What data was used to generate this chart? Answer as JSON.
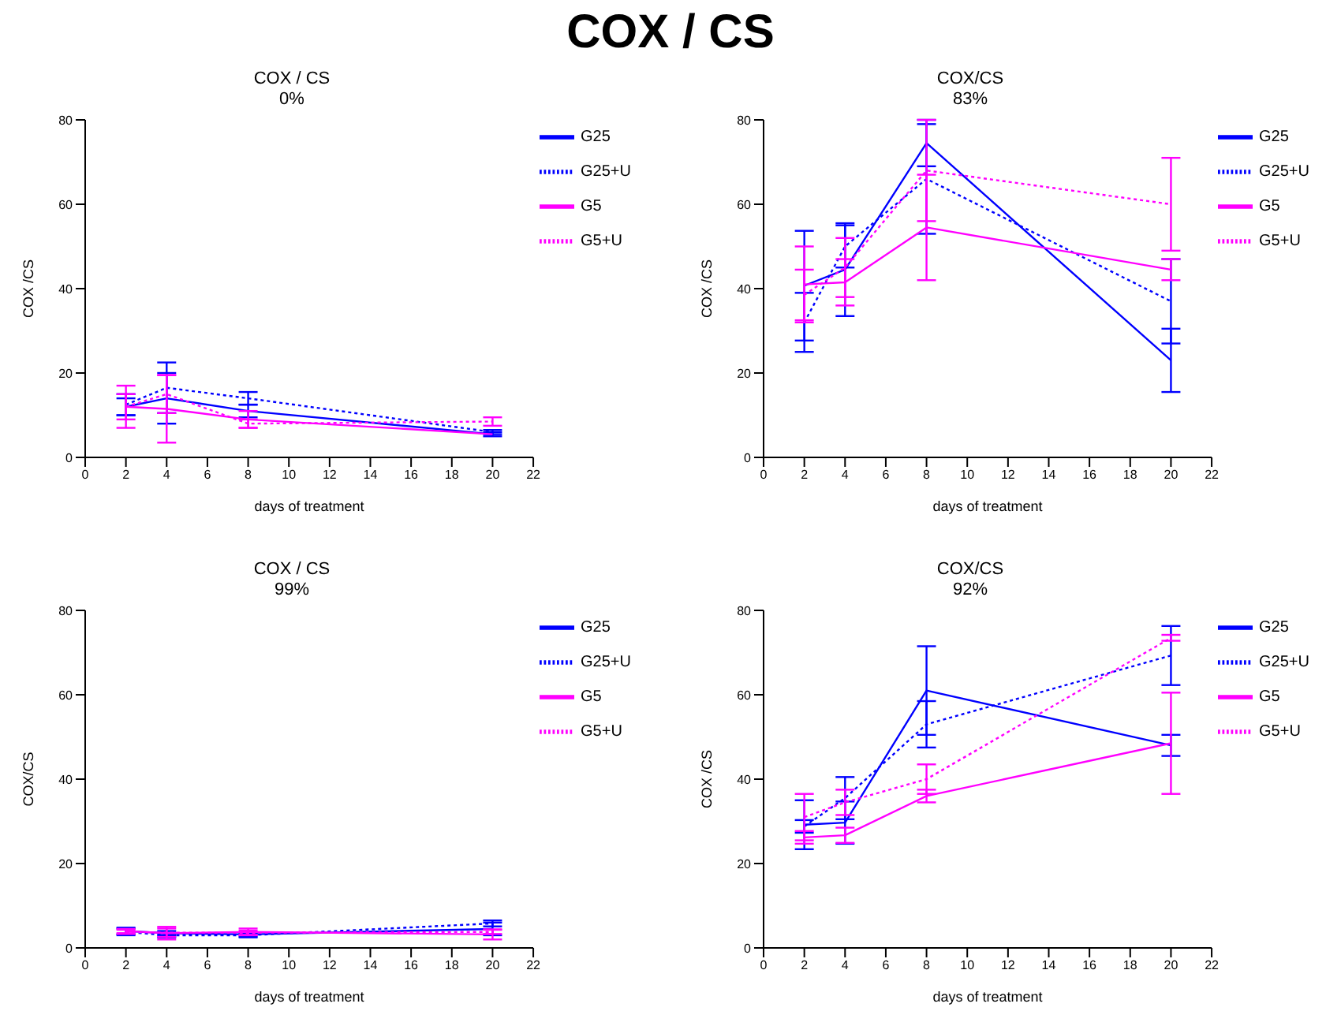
{
  "chart_data": [
    {
      "type": "line",
      "annotations": [
        "COX / CS"
      ],
      "title": "COX / CS",
      "subtitle": "0%",
      "xlabel": "days of treatment",
      "ylabel": "COX /CS",
      "x": [
        2,
        4,
        8,
        20
      ],
      "xlim": [
        0,
        22
      ],
      "xticks": [
        0,
        2,
        4,
        6,
        8,
        10,
        12,
        14,
        16,
        18,
        20,
        22
      ],
      "ylim": [
        0,
        80
      ],
      "yticks": [
        0,
        20,
        40,
        60,
        80
      ],
      "grid": false,
      "legend": "top right",
      "marker": "none",
      "series": [
        {
          "name": "G25",
          "color": "#0000ff",
          "line_style": "solid",
          "values": [
            12,
            14,
            11,
            5.5
          ],
          "errors": [
            2,
            6,
            1.5,
            0.5
          ]
        },
        {
          "name": "G25+U",
          "color": "#0000ff",
          "line_style": "dotted",
          "values": [
            12.5,
            16.5,
            14,
            6
          ],
          "errors": [
            2.5,
            6,
            1.5,
            0.5
          ]
        },
        {
          "name": "G5",
          "color": "#ff00ff",
          "line_style": "solid",
          "values": [
            12,
            11.5,
            9,
            5.5
          ],
          "errors": [
            5,
            8,
            2,
            null
          ]
        },
        {
          "name": "G5+U",
          "color": "#ff00ff",
          "line_style": "dotted",
          "values": [
            12,
            15,
            8,
            8.5
          ],
          "errors": [
            3,
            4.5,
            1,
            1
          ]
        }
      ]
    },
    {
      "type": "line",
      "title": "COX/CS",
      "subtitle": "83%",
      "xlabel": "days of treatment",
      "ylabel": "COX /CS",
      "x": [
        2,
        4,
        8,
        20
      ],
      "xlim": [
        0,
        22
      ],
      "xticks": [
        0,
        2,
        4,
        6,
        8,
        10,
        12,
        14,
        16,
        18,
        20,
        22
      ],
      "ylim": [
        0,
        80
      ],
      "yticks": [
        0,
        20,
        40,
        60,
        80
      ],
      "grid": false,
      "legend": "top right",
      "marker": "none",
      "series": [
        {
          "name": "G25",
          "color": "#0000ff",
          "line_style": "solid",
          "values": [
            40.7,
            44.5,
            74.5,
            23
          ],
          "errors": [
            13,
            11,
            5.5,
            7.5
          ]
        },
        {
          "name": "G25+U",
          "color": "#0000ff",
          "line_style": "dotted",
          "values": [
            32,
            50,
            66,
            37
          ],
          "errors": [
            7,
            5,
            13,
            10
          ]
        },
        {
          "name": "G5",
          "color": "#ff00ff",
          "line_style": "solid",
          "values": [
            41,
            41.5,
            54.5,
            44.5
          ],
          "errors": [
            9,
            5.5,
            12.5,
            2.5
          ]
        },
        {
          "name": "G5+U",
          "color": "#ff00ff",
          "line_style": "dotted",
          "values": [
            38.5,
            45,
            68,
            60
          ],
          "errors": [
            6,
            7,
            12,
            11
          ]
        }
      ]
    },
    {
      "type": "line",
      "title": "COX / CS",
      "subtitle": "99%",
      "xlabel": "days of treatment",
      "ylabel": "COX/CS",
      "x": [
        2,
        4,
        8,
        20
      ],
      "xlim": [
        0,
        22
      ],
      "xticks": [
        0,
        2,
        4,
        6,
        8,
        10,
        12,
        14,
        16,
        18,
        20,
        22
      ],
      "ylim": [
        0,
        80
      ],
      "yticks": [
        0,
        20,
        40,
        60,
        80
      ],
      "grid": false,
      "legend": "top right",
      "marker": "none",
      "series": [
        {
          "name": "G25",
          "color": "#0000ff",
          "line_style": "solid",
          "values": [
            4,
            3.5,
            3.2,
            4.5
          ],
          "errors": [
            0.8,
            0.5,
            0.5,
            1.5
          ]
        },
        {
          "name": "G25+U",
          "color": "#0000ff",
          "line_style": "dotted",
          "values": [
            3.8,
            3,
            3,
            5.8
          ],
          "errors": [
            0.8,
            0.5,
            0.5,
            0.7
          ]
        },
        {
          "name": "G5",
          "color": "#ff00ff",
          "line_style": "solid",
          "values": [
            4,
            3.5,
            3.8,
            3.2
          ],
          "errors": [
            0.5,
            1.5,
            0.8,
            1.2
          ]
        },
        {
          "name": "G5+U",
          "color": "#ff00ff",
          "line_style": "dotted",
          "values": [
            3.8,
            3.6,
            3.6,
            3.8
          ],
          "errors": [
            0.5,
            1,
            0.5,
            0.5
          ]
        }
      ]
    },
    {
      "type": "line",
      "title": "COX/CS",
      "subtitle": "92%",
      "xlabel": "days of treatment",
      "ylabel": "COX /CS",
      "x": [
        2,
        4,
        8,
        20
      ],
      "xlim": [
        0,
        22
      ],
      "xticks": [
        0,
        2,
        4,
        6,
        8,
        10,
        12,
        14,
        16,
        18,
        20,
        22
      ],
      "ylim": [
        0,
        80
      ],
      "yticks": [
        0,
        20,
        40,
        60,
        80
      ],
      "grid": false,
      "legend": "top right",
      "marker": "none",
      "series": [
        {
          "name": "G25",
          "color": "#0000ff",
          "line_style": "solid",
          "values": [
            29.2,
            29.7,
            61,
            48
          ],
          "errors": [
            5.8,
            5,
            10.5,
            2.5
          ]
        },
        {
          "name": "G25+U",
          "color": "#0000ff",
          "line_style": "dotted",
          "values": [
            28.8,
            35.5,
            53,
            69.3
          ],
          "errors": [
            1.5,
            5,
            5.5,
            7
          ]
        },
        {
          "name": "G5",
          "color": "#ff00ff",
          "line_style": "solid",
          "values": [
            26.2,
            26.7,
            36,
            48.5
          ],
          "errors": [
            1.5,
            1.8,
            1.5,
            12
          ]
        },
        {
          "name": "G5+U",
          "color": "#ff00ff",
          "line_style": "dotted",
          "values": [
            31,
            34.5,
            40,
            73.5
          ],
          "errors": [
            5.5,
            3,
            3.5,
            0.7
          ]
        }
      ]
    }
  ]
}
